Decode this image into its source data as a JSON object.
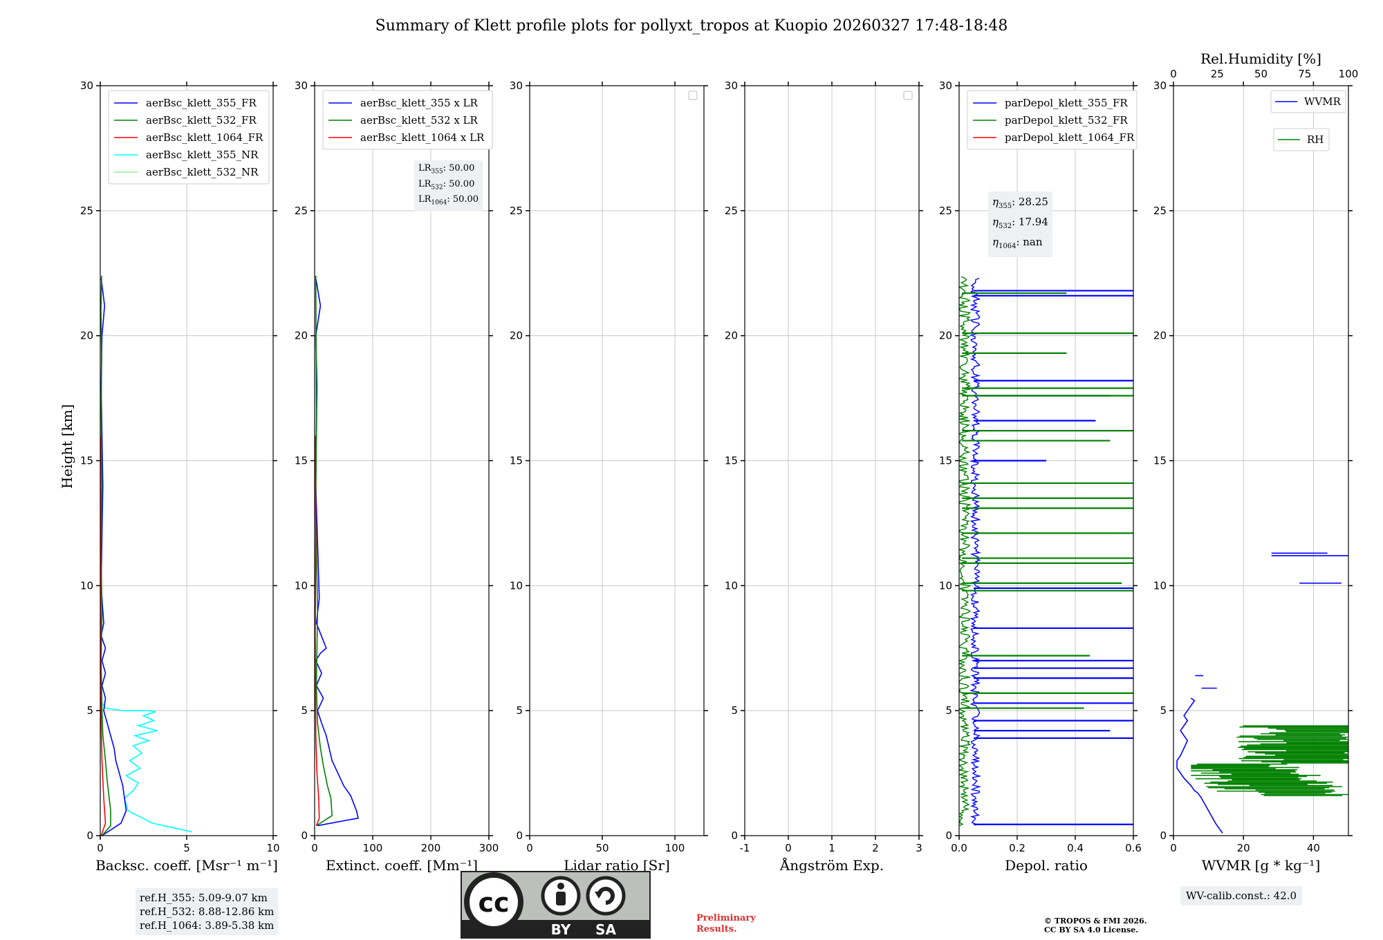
{
  "figure": {
    "title": "Summary of Klett profile plots for pollyxt_tropos at Kuopio 20260327 17:48-18:48",
    "ylabel": "Height [km]",
    "preliminary_line1": "Preliminary",
    "preliminary_line2": "Results.",
    "copyright_line1": "© TROPOS & FMI 2026.",
    "copyright_line2": "CC BY SA 4.0 License.",
    "license_badge": {
      "cc": "cc",
      "by": "BY",
      "sa": "SA"
    },
    "ref_heights": [
      "ref.H_355: 5.09-9.07 km",
      "ref.H_532: 8.88-12.86 km",
      "ref.H_1064: 3.89-5.38 km"
    ],
    "wv_calib": "WV-calib.const.: 42.0",
    "lidar_ratio_box": [
      {
        "sym": "LR",
        "sub": "355",
        "val": ": 50.00"
      },
      {
        "sym": "LR",
        "sub": "532",
        "val": ": 50.00"
      },
      {
        "sym": "LR",
        "sub": "1064",
        "val": ": 50.00"
      }
    ],
    "eta_box": [
      {
        "sym": "η",
        "sub": "355",
        "val": ": 28.25"
      },
      {
        "sym": "η",
        "sub": "532",
        "val": ": 17.94"
      },
      {
        "sym": "η",
        "sub": "1064",
        "val": ": nan"
      }
    ],
    "colors": {
      "blue": "#0000ff",
      "green": "#008000",
      "red": "#ff0000",
      "cyan": "#00ffff",
      "lightgreen": "#90ee90"
    }
  },
  "chart_data": [
    {
      "id": "bsc",
      "type": "line",
      "xlabel": "Backsc. coeff. [Msr⁻¹ m⁻¹]",
      "xlim": [
        0,
        10
      ],
      "xticks": [
        0,
        5,
        10
      ],
      "ylim": [
        0,
        30
      ],
      "yticks": [
        0,
        5,
        10,
        15,
        20,
        25,
        30
      ],
      "legend": [
        "aerBsc_klett_355_FR",
        "aerBsc_klett_532_FR",
        "aerBsc_klett_1064_FR",
        "aerBsc_klett_355_NR",
        "aerBsc_klett_532_NR"
      ],
      "legend_colors": [
        "#0000ff",
        "#008000",
        "#ff0000",
        "#00ffff",
        "#90ee90"
      ],
      "series": [
        {
          "name": "aerBsc_klett_355_NR",
          "color": "#00ffff",
          "x": [
            5.3,
            3.0,
            1.6,
            1.4,
            1.9,
            2.2,
            1.5,
            2.3,
            1.7,
            2.4,
            1.9,
            2.8,
            2.0,
            3.3,
            2.2,
            3.1,
            2.5,
            3.2,
            2.8,
            1.3,
            0.3,
            0.1
          ],
          "y": [
            0.15,
            0.5,
            1.0,
            1.5,
            1.8,
            2.1,
            2.4,
            2.7,
            3.0,
            3.3,
            3.6,
            3.8,
            4.0,
            4.2,
            4.4,
            4.6,
            4.8,
            4.95,
            5.0,
            5.0,
            5.1,
            5.3
          ]
        },
        {
          "name": "aerBsc_klett_355_FR",
          "color": "#0000ff",
          "x": [
            0.1,
            1.2,
            1.5,
            1.4,
            1.3,
            1.1,
            0.9,
            0.8,
            0.6,
            0.4,
            0.2,
            0.3,
            0.1,
            0.3,
            0.1,
            0.3,
            0.05,
            0.2,
            0.05,
            0.15,
            0.05,
            0.1,
            0.25,
            0.05
          ],
          "y": [
            0.0,
            0.5,
            1.0,
            1.5,
            2.0,
            2.5,
            3.0,
            3.5,
            4.0,
            4.5,
            5.0,
            5.5,
            6.0,
            6.5,
            7.0,
            7.5,
            8.0,
            8.5,
            10,
            14,
            18,
            20,
            21.2,
            22.3
          ]
        },
        {
          "name": "aerBsc_klett_532_FR",
          "color": "#008000",
          "x": [
            0.1,
            0.6,
            0.6,
            0.5,
            0.4,
            0.3,
            0.15,
            0.1,
            0.05,
            0.1,
            0.05,
            0.1,
            0.05,
            0.08,
            0.04,
            0.08
          ],
          "y": [
            0.0,
            0.4,
            1.0,
            1.6,
            2.2,
            3.0,
            4.0,
            5.0,
            7.0,
            9.0,
            11,
            14,
            17,
            19,
            21,
            22.4
          ]
        },
        {
          "name": "aerBsc_klett_1064_FR",
          "color": "#ff0000",
          "x": [
            0.05,
            0.3,
            0.2,
            0.1,
            0.05,
            0.02,
            0.03,
            0.02
          ],
          "y": [
            0.0,
            0.5,
            1.5,
            3.0,
            4.5,
            8.0,
            12,
            16
          ]
        }
      ],
      "ref_heights_box": true
    },
    {
      "id": "ext",
      "type": "line",
      "xlabel": "Extinct. coeff. [Mm⁻¹]",
      "xlim": [
        0,
        300
      ],
      "xticks": [
        0,
        100,
        200,
        300
      ],
      "ylim": [
        0,
        30
      ],
      "yticks": [
        0,
        5,
        10,
        15,
        20,
        25,
        30
      ],
      "legend": [
        "aerBsc_klett_355 x LR",
        "aerBsc_klett_532 x LR",
        "aerBsc_klett_1064 x LR"
      ],
      "legend_colors": [
        "#0000ff",
        "#008000",
        "#ff0000"
      ],
      "series": [
        {
          "name": "aerBsc_klett_355 x LR",
          "color": "#0000ff",
          "x": [
            5,
            75,
            72,
            62,
            50,
            40,
            30,
            25,
            20,
            12,
            5,
            15,
            3,
            12,
            2,
            10,
            20,
            3,
            8,
            2,
            4,
            2,
            10,
            2
          ],
          "y": [
            0.4,
            0.7,
            1.0,
            1.6,
            2.0,
            2.5,
            3.0,
            3.5,
            4.0,
            4.5,
            5.0,
            5.5,
            6.0,
            6.5,
            7.0,
            7.3,
            7.5,
            8.5,
            9.5,
            14,
            18,
            20,
            21.2,
            22.3
          ]
        },
        {
          "name": "aerBsc_klett_532 x LR",
          "color": "#008000",
          "x": [
            3,
            30,
            28,
            22,
            15,
            10,
            5,
            3,
            5,
            2,
            3,
            2
          ],
          "y": [
            0.4,
            0.8,
            1.5,
            2.0,
            2.8,
            3.5,
            4.5,
            6.0,
            9.0,
            13,
            17,
            22.4
          ]
        },
        {
          "name": "aerBsc_klett_1064 x LR",
          "color": "#ff0000",
          "x": [
            3,
            8,
            7,
            4,
            2,
            1,
            2,
            1
          ],
          "y": [
            0.4,
            0.7,
            1.5,
            2.5,
            4.0,
            8.0,
            12,
            16
          ]
        }
      ],
      "lr_box": true
    },
    {
      "id": "lr",
      "type": "line",
      "xlabel": "Lidar ratio [Sr]",
      "xlim": [
        0,
        120
      ],
      "xticks": [
        0,
        50,
        100
      ],
      "ylim": [
        0,
        30
      ],
      "yticks": [
        0,
        5,
        10,
        15,
        20,
        25,
        30
      ],
      "legend": [],
      "series": [],
      "empty_legend": true
    },
    {
      "id": "ae",
      "type": "line",
      "xlabel": "Ångström Exp.",
      "xlim": [
        -1,
        3
      ],
      "xticks": [
        -1,
        0,
        1,
        2,
        3
      ],
      "ylim": [
        0,
        30
      ],
      "yticks": [
        0,
        5,
        10,
        15,
        20,
        25,
        30
      ],
      "legend": [],
      "series": [],
      "empty_legend": true
    },
    {
      "id": "depol",
      "type": "line",
      "xlabel": "Depol. ratio",
      "xlim": [
        0,
        0.6
      ],
      "xticks": [
        0.0,
        0.2,
        0.4,
        0.6
      ],
      "ylim": [
        0,
        30
      ],
      "yticks": [
        0,
        5,
        10,
        15,
        20,
        25,
        30
      ],
      "legend": [
        "parDepol_klett_355_FR",
        "parDepol_klett_532_FR",
        "parDepol_klett_1064_FR"
      ],
      "legend_colors": [
        "#0000ff",
        "#008000",
        "#ff0000"
      ],
      "series": [
        {
          "name": "parDepol_klett_355_FR",
          "color": "#0000ff",
          "noisy": true,
          "y_from": 0.4,
          "y_to": 22.3,
          "base": 0.05,
          "spread": 0.03,
          "spikes": [
            [
              0.45,
              0.6
            ],
            [
              3.9,
              0.6
            ],
            [
              4.2,
              0.52
            ],
            [
              4.6,
              0.6
            ],
            [
              5.3,
              0.6
            ],
            [
              6.3,
              0.6
            ],
            [
              6.7,
              0.6
            ],
            [
              7.0,
              0.6
            ],
            [
              8.3,
              0.6
            ],
            [
              9.9,
              0.6
            ],
            [
              15.0,
              0.3
            ],
            [
              16.6,
              0.47
            ],
            [
              17.6,
              0.52
            ],
            [
              18.2,
              0.6
            ],
            [
              20.1,
              0.6
            ],
            [
              21.6,
              0.6
            ],
            [
              21.8,
              0.6
            ]
          ]
        },
        {
          "name": "parDepol_klett_532_FR",
          "color": "#008000",
          "noisy": true,
          "y_from": 0.4,
          "y_to": 22.4,
          "base": 0.01,
          "spread": 0.04,
          "spikes": [
            [
              5.1,
              0.43
            ],
            [
              5.7,
              0.6
            ],
            [
              7.2,
              0.45
            ],
            [
              9.8,
              0.6
            ],
            [
              10.1,
              0.56
            ],
            [
              10.9,
              0.6
            ],
            [
              11.1,
              0.6
            ],
            [
              12.1,
              0.6
            ],
            [
              13.1,
              0.6
            ],
            [
              13.5,
              0.6
            ],
            [
              14.1,
              0.6
            ],
            [
              15.8,
              0.52
            ],
            [
              16.2,
              0.6
            ],
            [
              17.6,
              0.6
            ],
            [
              17.9,
              0.6
            ],
            [
              19.3,
              0.37
            ],
            [
              20.1,
              0.6
            ],
            [
              21.7,
              0.37
            ]
          ]
        },
        {
          "name": "parDepol_klett_1064_FR",
          "color": "#ff0000",
          "x": [],
          "y": []
        }
      ],
      "eta_box": true
    },
    {
      "id": "wv",
      "type": "line",
      "xlabel": "WVMR [g * kg⁻¹]",
      "xlim": [
        0,
        50
      ],
      "xticks": [
        0,
        20,
        40
      ],
      "top_xlabel": "Rel.Humidity [%]",
      "top_xlim": [
        0,
        100
      ],
      "top_xticks": [
        0,
        25,
        50,
        75,
        100
      ],
      "ylim": [
        0,
        30
      ],
      "yticks": [
        0,
        5,
        10,
        15,
        20,
        25,
        30
      ],
      "legend": [
        "WVMR",
        "RH"
      ],
      "legend_colors": [
        "#0000ff",
        "#008000"
      ],
      "series": [
        {
          "name": "WVMR",
          "color": "#0000ff",
          "x": [
            14,
            12,
            10,
            8,
            7,
            6,
            5,
            3,
            1,
            1,
            2,
            3,
            4,
            3,
            2,
            3,
            4,
            3,
            4,
            5,
            6,
            5
          ],
          "y": [
            0.1,
            0.5,
            1.0,
            1.5,
            1.7,
            1.8,
            2.0,
            2.3,
            2.7,
            3.0,
            3.2,
            3.5,
            3.8,
            4.0,
            4.2,
            4.4,
            4.6,
            4.8,
            5.0,
            5.2,
            5.4,
            5.5
          ]
        },
        {
          "name": "WVMR segments",
          "color": "#0000ff",
          "segments": [
            [
              6.4,
              8.5,
              6.2
            ],
            [
              5.9,
              8,
              12.4
            ],
            [
              10.1,
              36,
              48
            ],
            [
              11.2,
              28,
              50
            ],
            [
              11.3,
              28,
              44
            ]
          ]
        },
        {
          "name": "RH",
          "color": "#008000",
          "axis": "top",
          "noisy_rh": true,
          "y_from": 1.6,
          "y_to": 4.4
        }
      ],
      "wv_box": true
    }
  ]
}
